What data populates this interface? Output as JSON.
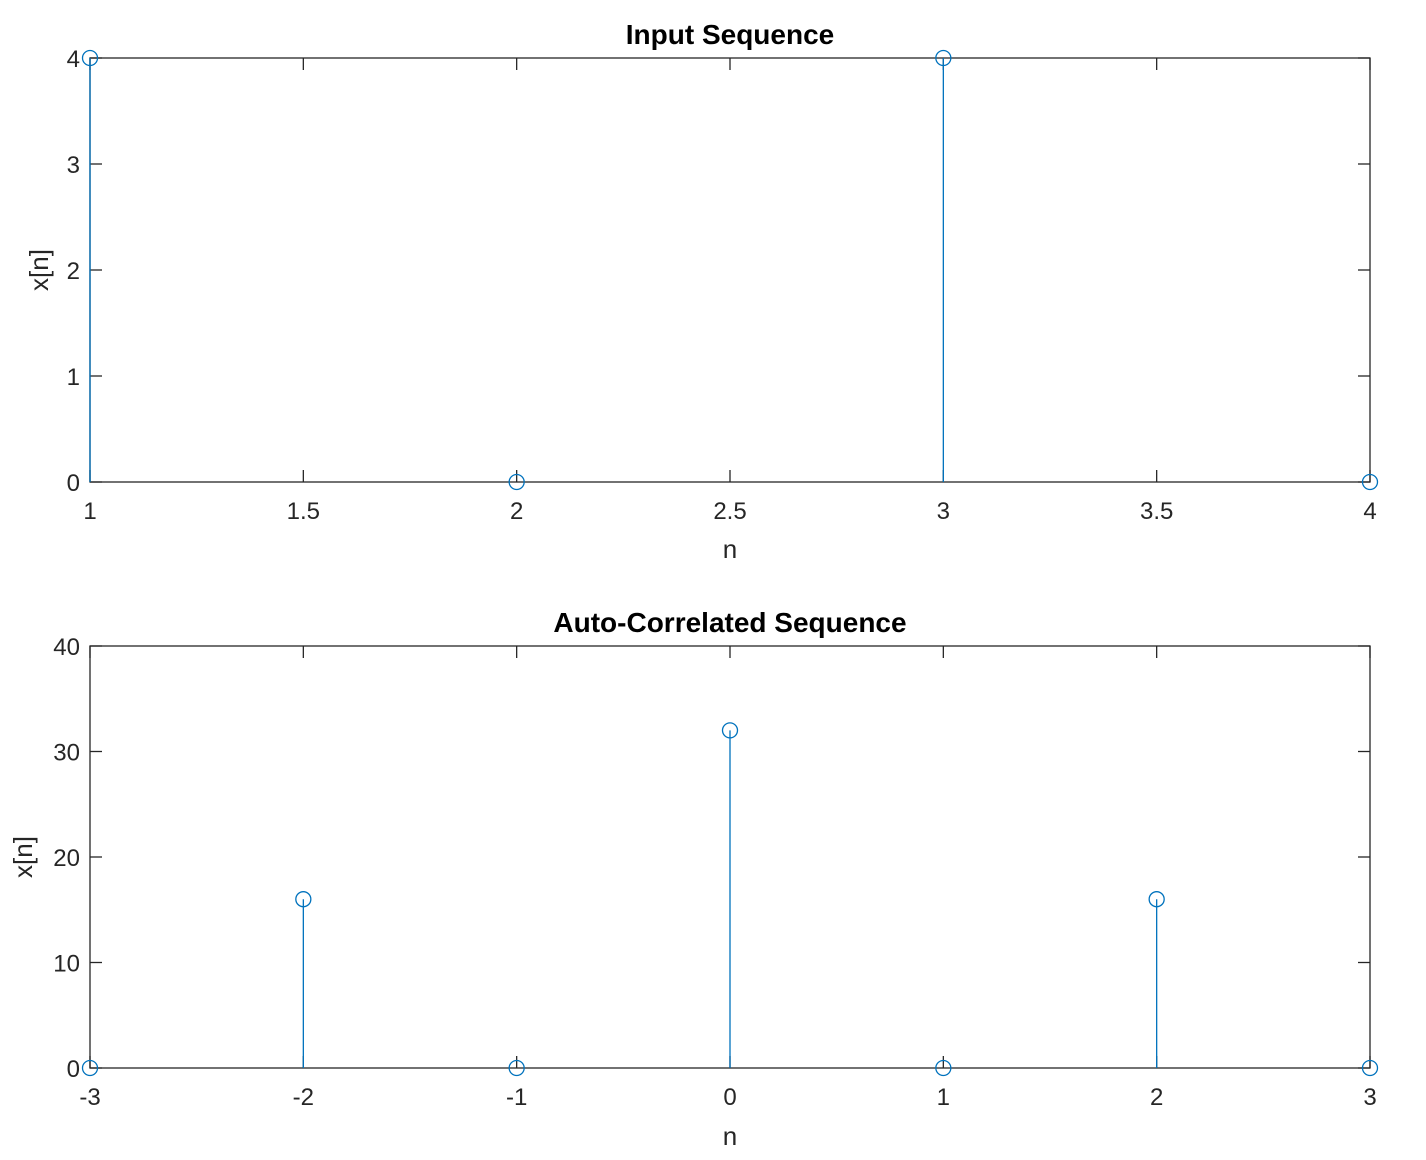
{
  "chart_data": [
    {
      "type": "stem",
      "title": "Input Sequence",
      "xlabel": "n",
      "ylabel": "x[n]",
      "x": [
        1,
        2,
        3,
        4
      ],
      "y": [
        4,
        0,
        4,
        0
      ],
      "xlim": [
        1,
        4
      ],
      "ylim": [
        0,
        4
      ],
      "xticks": [
        1,
        1.5,
        2,
        2.5,
        3,
        3.5,
        4
      ],
      "xtick_labels": [
        "1",
        "1.5",
        "2",
        "2.5",
        "3",
        "3.5",
        "4"
      ],
      "yticks": [
        0,
        1,
        2,
        3,
        4
      ],
      "ytick_labels": [
        "0",
        "1",
        "2",
        "3",
        "4"
      ],
      "grid": false,
      "color": "#0072BD"
    },
    {
      "type": "stem",
      "title": "Auto-Correlated Sequence",
      "xlabel": "n",
      "ylabel": "x[n]",
      "x": [
        -3,
        -2,
        -1,
        0,
        1,
        2,
        3
      ],
      "y": [
        0,
        16,
        0,
        32,
        0,
        16,
        0
      ],
      "xlim": [
        -3,
        3
      ],
      "ylim": [
        0,
        40
      ],
      "xticks": [
        -3,
        -2,
        -1,
        0,
        1,
        2,
        3
      ],
      "xtick_labels": [
        "-3",
        "-2",
        "-1",
        "0",
        "1",
        "2",
        "3"
      ],
      "yticks": [
        0,
        10,
        20,
        30,
        40
      ],
      "ytick_labels": [
        "0",
        "10",
        "20",
        "30",
        "40"
      ],
      "grid": false,
      "color": "#0072BD"
    }
  ]
}
